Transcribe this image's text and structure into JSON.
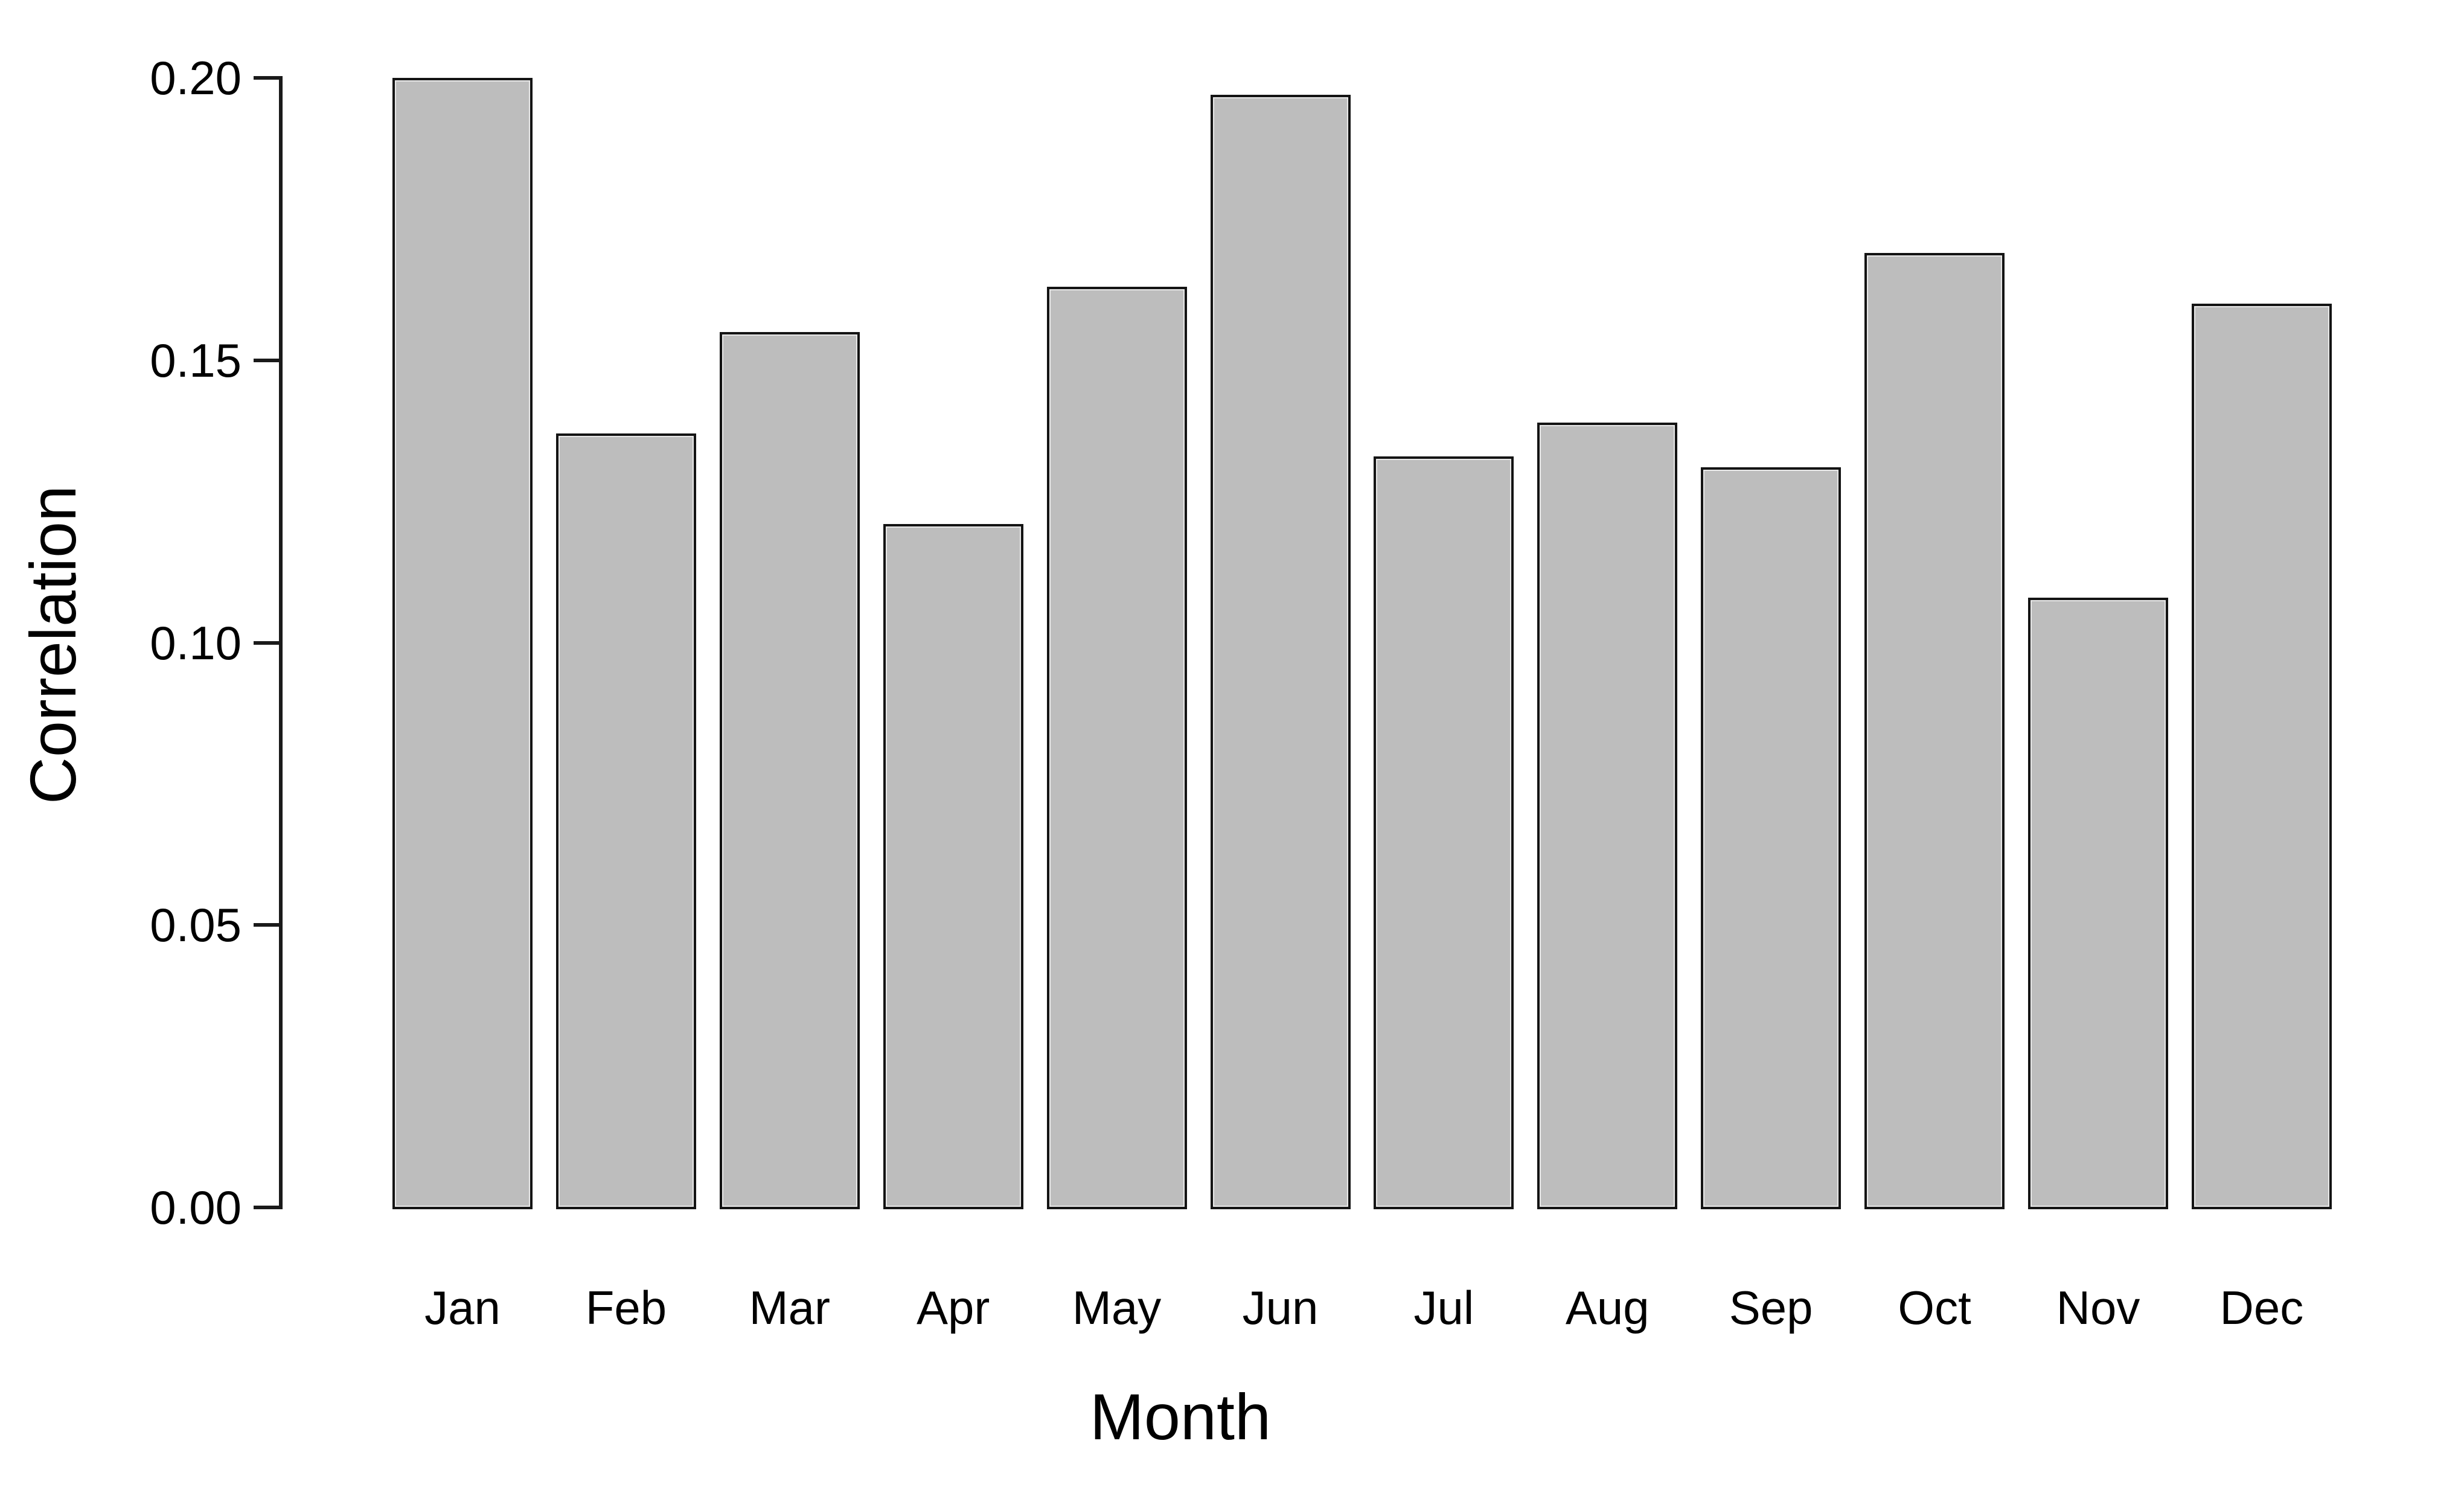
{
  "chart_data": {
    "type": "bar",
    "title": "",
    "xlabel": "Month",
    "ylabel": "Correlation",
    "categories": [
      "Jan",
      "Feb",
      "Mar",
      "Apr",
      "May",
      "Jun",
      "Jul",
      "Aug",
      "Sep",
      "Oct",
      "Nov",
      "Dec"
    ],
    "values": [
      0.2,
      0.137,
      0.155,
      0.121,
      0.163,
      0.197,
      0.133,
      0.139,
      0.131,
      0.169,
      0.108,
      0.16
    ],
    "ylim": [
      0.0,
      0.2
    ],
    "yticks": [
      0.0,
      0.05,
      0.1,
      0.15,
      0.2
    ],
    "ytick_labels": [
      "0.00",
      "0.05",
      "0.10",
      "0.15",
      "0.20"
    ],
    "grid": false,
    "legend_position": "none",
    "bar_fill_color": "#bdbdbd",
    "bar_border_color": "#141414",
    "axis_color": "#1a1a1a",
    "background_color": "#ffffff"
  }
}
